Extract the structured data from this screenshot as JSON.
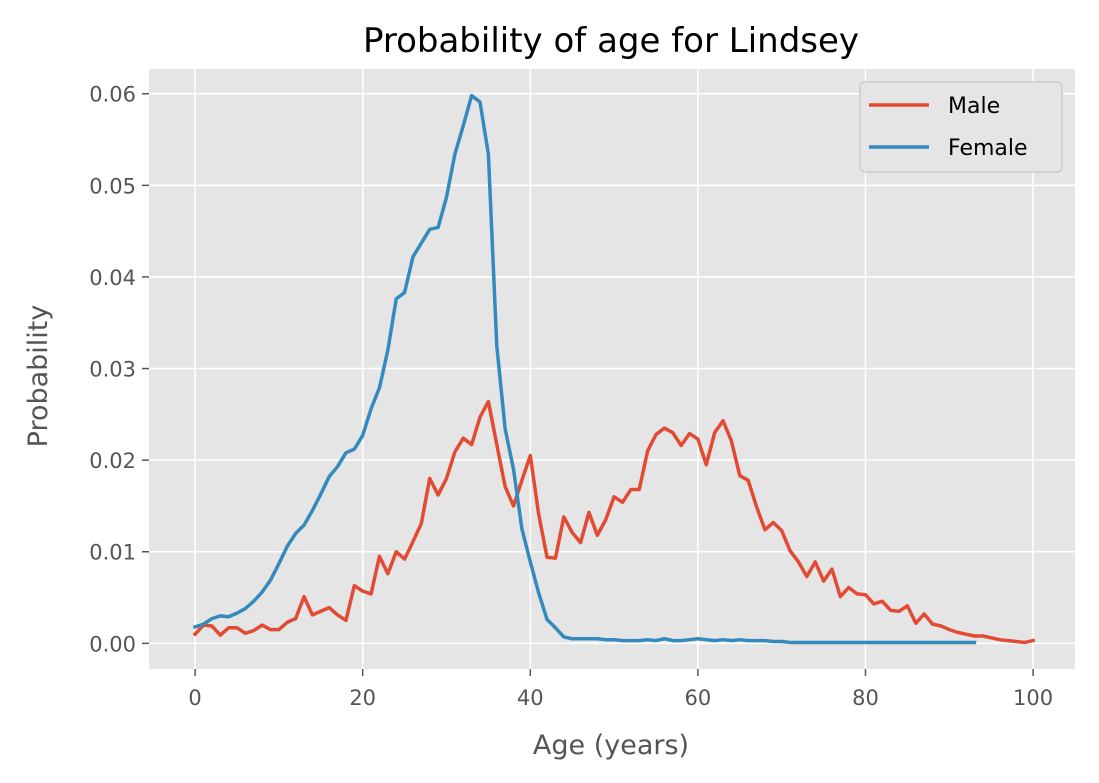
{
  "chart_data": {
    "type": "line",
    "title": "Probability of age for Lindsey",
    "xlabel": "Age (years)",
    "ylabel": "Probability",
    "xlim": [
      -5.5,
      105
    ],
    "ylim": [
      -0.0028,
      0.0627
    ],
    "xticks": [
      0,
      20,
      40,
      60,
      80,
      100
    ],
    "yticks": [
      0.0,
      0.01,
      0.02,
      0.03,
      0.04,
      0.05,
      0.06
    ],
    "ytick_labels": [
      "0.00",
      "0.01",
      "0.02",
      "0.03",
      "0.04",
      "0.05",
      "0.06"
    ],
    "grid": true,
    "legend_position": "top-right",
    "series": [
      {
        "name": "Male",
        "color": "#E24A33",
        "x_start": 0,
        "values": [
          0.001,
          0.002,
          0.0019,
          0.0009,
          0.0017,
          0.0017,
          0.0011,
          0.0014,
          0.002,
          0.0015,
          0.0015,
          0.0023,
          0.0027,
          0.0051,
          0.0031,
          0.0035,
          0.0039,
          0.0031,
          0.0025,
          0.0063,
          0.0057,
          0.0054,
          0.0095,
          0.0076,
          0.01,
          0.0092,
          0.0111,
          0.0131,
          0.018,
          0.0162,
          0.018,
          0.0209,
          0.0224,
          0.0217,
          0.0247,
          0.0264,
          0.0217,
          0.0171,
          0.015,
          0.0178,
          0.0205,
          0.0141,
          0.0094,
          0.0093,
          0.0138,
          0.0121,
          0.011,
          0.0143,
          0.0118,
          0.0135,
          0.016,
          0.0154,
          0.0168,
          0.0168,
          0.021,
          0.0228,
          0.0235,
          0.023,
          0.0216,
          0.0229,
          0.0223,
          0.0195,
          0.023,
          0.0243,
          0.0221,
          0.0183,
          0.0178,
          0.0149,
          0.0124,
          0.0132,
          0.0123,
          0.0101,
          0.0089,
          0.0073,
          0.0089,
          0.0068,
          0.0081,
          0.0051,
          0.0061,
          0.0054,
          0.0053,
          0.0043,
          0.0046,
          0.0036,
          0.0035,
          0.0041,
          0.0022,
          0.0032,
          0.0021,
          0.0019,
          0.0015,
          0.0012,
          0.001,
          0.0008,
          0.0008,
          0.0006,
          0.0004,
          0.0003,
          0.0002,
          0.0001,
          0.0003
        ]
      },
      {
        "name": "Female",
        "color": "#348ABD",
        "x_start": 0,
        "values": [
          0.0018,
          0.0021,
          0.0027,
          0.003,
          0.0029,
          0.0033,
          0.0038,
          0.0046,
          0.0056,
          0.0069,
          0.0087,
          0.0106,
          0.012,
          0.0129,
          0.0145,
          0.0163,
          0.0182,
          0.0193,
          0.0208,
          0.0212,
          0.0227,
          0.0256,
          0.0279,
          0.032,
          0.0376,
          0.0383,
          0.0422,
          0.0437,
          0.0452,
          0.0454,
          0.0487,
          0.0534,
          0.0565,
          0.0598,
          0.0591,
          0.0534,
          0.0325,
          0.0234,
          0.019,
          0.0125,
          0.0089,
          0.0055,
          0.0026,
          0.0017,
          0.0007,
          0.0005,
          0.0005,
          0.0005,
          0.0005,
          0.0004,
          0.0004,
          0.0003,
          0.0003,
          0.0003,
          0.0004,
          0.0003,
          0.0005,
          0.0003,
          0.0003,
          0.0004,
          0.0005,
          0.0004,
          0.0003,
          0.0004,
          0.0003,
          0.0004,
          0.0003,
          0.0003,
          0.0003,
          0.0002,
          0.0002,
          0.0001,
          0.0001,
          0.0001,
          0.0001,
          0.0001,
          0.0001,
          0.0001,
          0.0001,
          0.0001,
          0.0001,
          0.0001,
          0.0001,
          0.0001,
          0.0001,
          0.0001,
          0.0001,
          0.0001,
          0.0001,
          0.0001,
          0.0001,
          0.0001,
          0.0001,
          0.0001
        ]
      }
    ]
  }
}
